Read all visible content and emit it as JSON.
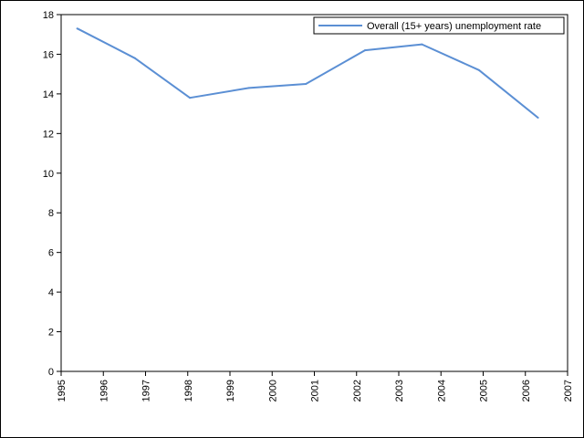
{
  "chart_data": {
    "type": "line",
    "title": "",
    "xlabel": "",
    "ylabel": "",
    "xlim": [
      1995,
      2007
    ],
    "ylim": [
      0,
      18
    ],
    "x_ticks": [
      1995,
      1996,
      1997,
      1998,
      1999,
      2000,
      2001,
      2002,
      2003,
      2004,
      2005,
      2006,
      2007
    ],
    "y_ticks": [
      0,
      2,
      4,
      6,
      8,
      10,
      12,
      14,
      16,
      18
    ],
    "grid": false,
    "legend_position": "top-right",
    "series": [
      {
        "name": "Overall (15+ years) unemployment rate",
        "color": "#5b8fd4",
        "x": [
          1995.38,
          1996.75,
          1998.05,
          1999.45,
          2000.8,
          2002.2,
          2003.55,
          2004.9,
          2006.3
        ],
        "y": [
          17.3,
          15.8,
          13.8,
          14.3,
          14.5,
          16.2,
          16.5,
          15.2,
          12.8
        ]
      }
    ]
  }
}
